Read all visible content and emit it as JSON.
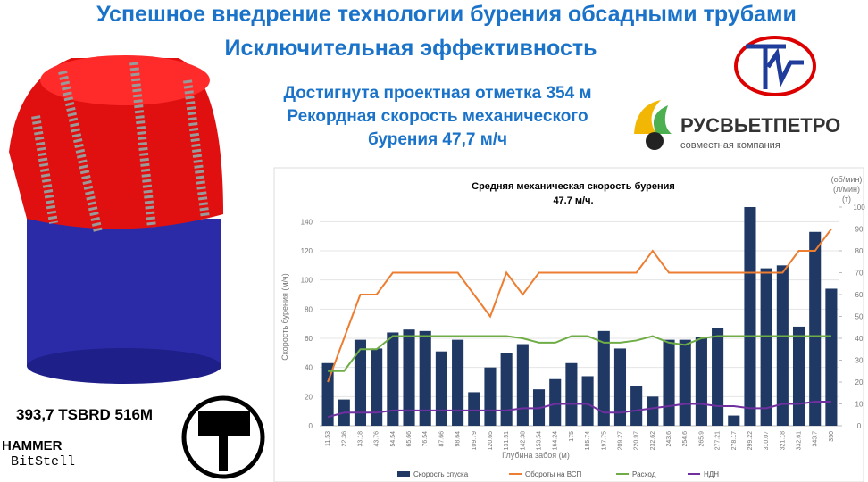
{
  "slide": {
    "title": "Успешное внедрение технологии бурения обсадными трубами",
    "subtitle": "Исключительная эффективность",
    "achievements": [
      "Достигнута проектная отметка 354 м",
      "Рекордная скорость механического",
      "бурения 47,7 м/ч"
    ],
    "company": "РУСВЬЕТПЕТРО",
    "company_sub": "совместная компания",
    "bit_model": "393,7 TSBRD 516M",
    "brand": [
      "HAMMER",
      "BitStell"
    ]
  },
  "chart_data": {
    "type": "combo",
    "title": "Средняя механическая скорость бурения",
    "subtitle": "47.7 м/ч.",
    "xlabel": "Глубина забоя (м)",
    "ylabel": "Скорость бурения (м/ч)",
    "y2labels": [
      "(об/мин)",
      "(л/мин)",
      "(т)"
    ],
    "categories": [
      "11.53",
      "22.36",
      "33.18",
      "43.76",
      "54.54",
      "65.66",
      "76.54",
      "87.66",
      "98.64",
      "109.79",
      "120.65",
      "131.51",
      "142.38",
      "153.54",
      "164.24",
      "175",
      "185.74",
      "197.75",
      "209.27",
      "220.97",
      "232.62",
      "243.6",
      "254.6",
      "265.9",
      "277.21",
      "278.17",
      "299.22",
      "310.07",
      "321.18",
      "332.61",
      "343.7",
      "350"
    ],
    "series": [
      {
        "name": "Скорость спуска",
        "type": "bar",
        "color": "#1f3864",
        "values": [
          43,
          18,
          59,
          53,
          64,
          66,
          65,
          51,
          59,
          23,
          40,
          50,
          56,
          25,
          32,
          43,
          34,
          65,
          53,
          27,
          20,
          59,
          59,
          61,
          67,
          7,
          150,
          108,
          110,
          68,
          133,
          94
        ]
      },
      {
        "name": "Обороты на ВСП",
        "type": "line",
        "axis": "y2",
        "color": "#ed7d31",
        "values": [
          20,
          40,
          60,
          60,
          70,
          70,
          70,
          70,
          70,
          60,
          50,
          70,
          60,
          70,
          70,
          70,
          70,
          70,
          70,
          70,
          80,
          70,
          70,
          70,
          70,
          70,
          70,
          70,
          70,
          80,
          80,
          90
        ]
      },
      {
        "name": "Расход",
        "type": "line",
        "axis": "y2",
        "color": "#70ad47",
        "values": [
          25,
          25,
          35,
          35,
          41,
          41,
          41,
          41,
          41,
          41,
          41,
          41,
          40,
          38,
          38,
          41,
          41,
          38,
          38,
          39,
          41,
          38,
          37,
          40,
          41,
          41,
          41,
          41,
          41,
          41,
          41,
          41
        ]
      },
      {
        "name": "НДН",
        "type": "line",
        "axis": "y2",
        "color": "#7030a0",
        "values": [
          4,
          6,
          6,
          6,
          7,
          7,
          7,
          7,
          7,
          7,
          7,
          7,
          8,
          8,
          10,
          10,
          10,
          6,
          6,
          7,
          8,
          9,
          10,
          10,
          9,
          9,
          8,
          8,
          10,
          10,
          11,
          11
        ]
      }
    ],
    "ylim": [
      0,
      150
    ],
    "yticks": [
      0,
      20,
      40,
      60,
      80,
      100,
      120,
      140
    ],
    "y2lim": [
      0,
      100
    ],
    "y2ticks": [
      0,
      10,
      20,
      30,
      40,
      50,
      60,
      70,
      80,
      90,
      100
    ],
    "grid": true
  }
}
